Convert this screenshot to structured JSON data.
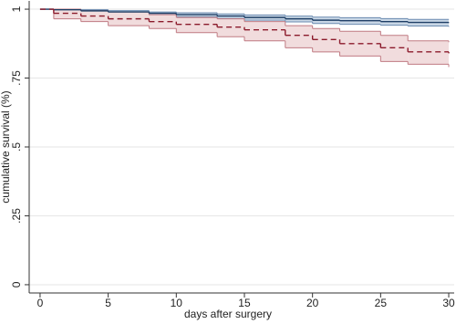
{
  "chart_data": {
    "type": "survival",
    "xlabel": "days after surgery",
    "ylabel": "cumulative survival (%)",
    "xlim": [
      -0.8,
      30.4
    ],
    "ylim": [
      -0.03,
      1.03
    ],
    "xticks": [
      0,
      5,
      10,
      15,
      20,
      25,
      30
    ],
    "yticks": [
      0,
      {
        "value": 0.25,
        "label": ".25"
      },
      {
        "value": 0.5,
        "label": ".5"
      },
      {
        "value": 0.75,
        "label": ".75"
      },
      1
    ],
    "grid": true,
    "x": [
      0,
      1,
      3,
      5,
      8,
      10,
      13,
      15,
      18,
      20,
      22,
      25,
      27,
      30
    ],
    "series": [
      {
        "color": "#1f3f66",
        "band_color": "#c9d7e6",
        "edge_color": "#6b8bb0",
        "dashed": false,
        "values": [
          1,
          0.998,
          0.994,
          0.99,
          0.985,
          0.98,
          0.975,
          0.97,
          0.965,
          0.96,
          0.958,
          0.955,
          0.952,
          0.95
        ],
        "upper": [
          1,
          1,
          0.998,
          0.995,
          0.99,
          0.987,
          0.983,
          0.979,
          0.975,
          0.971,
          0.969,
          0.966,
          0.963,
          0.962
        ],
        "lower": [
          1,
          0.996,
          0.99,
          0.985,
          0.978,
          0.972,
          0.966,
          0.96,
          0.954,
          0.948,
          0.945,
          0.942,
          0.939,
          0.936
        ]
      },
      {
        "color": "#8b1a2b",
        "band_color": "#f1dcdd",
        "edge_color": "#c07a82",
        "dashed": true,
        "values": [
          1,
          0.985,
          0.975,
          0.965,
          0.955,
          0.945,
          0.935,
          0.925,
          0.905,
          0.89,
          0.875,
          0.86,
          0.845,
          0.84
        ],
        "upper": [
          1,
          1,
          0.995,
          0.99,
          0.98,
          0.97,
          0.965,
          0.955,
          0.94,
          0.93,
          0.92,
          0.905,
          0.885,
          0.88
        ],
        "lower": [
          1,
          0.965,
          0.955,
          0.94,
          0.93,
          0.915,
          0.9,
          0.885,
          0.86,
          0.845,
          0.83,
          0.81,
          0.8,
          0.79
        ]
      }
    ]
  }
}
